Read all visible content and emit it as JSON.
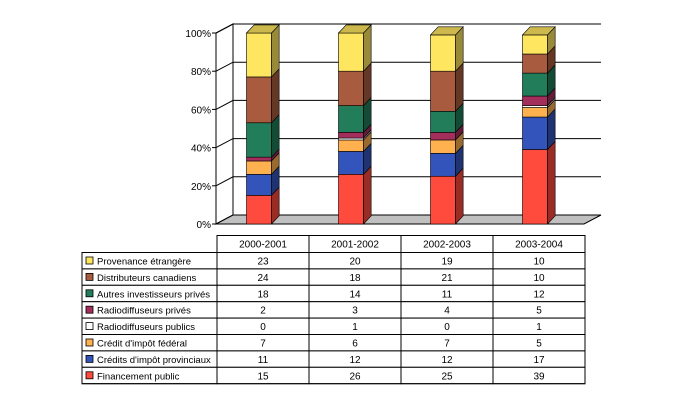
{
  "chart_data": {
    "type": "bar",
    "stacked": true,
    "percent_stacked": true,
    "three_d": true,
    "categories": [
      "2000-2001",
      "2001-2002",
      "2002-2003",
      "2003-2004"
    ],
    "y_ticks": [
      "0%",
      "20%",
      "40%",
      "60%",
      "80%",
      "100%"
    ],
    "ylim": [
      0,
      100
    ],
    "grid": true,
    "legend_placement": "data-table-left",
    "series": [
      {
        "name": "Financement public",
        "color": "#FF4B3D",
        "values": [
          15,
          26,
          25,
          39
        ]
      },
      {
        "name": "Crédits d'impôt provinciaux",
        "color": "#3355BB",
        "values": [
          11,
          12,
          12,
          17
        ]
      },
      {
        "name": "Crédit d'impôt fédéral",
        "color": "#FFB14F",
        "values": [
          7,
          6,
          7,
          5
        ]
      },
      {
        "name": "Radiodiffuseurs publics",
        "color": "#FFFFFF",
        "values": [
          0,
          1,
          0,
          1
        ]
      },
      {
        "name": "Radiodiffuseurs privés",
        "color": "#A32E5C",
        "values": [
          2,
          3,
          4,
          5
        ]
      },
      {
        "name": "Autres investisseurs privés",
        "color": "#227D5A",
        "values": [
          18,
          14,
          11,
          12
        ]
      },
      {
        "name": "Distributeurs canadiens",
        "color": "#A85B3E",
        "values": [
          24,
          18,
          21,
          10
        ]
      },
      {
        "name": "Provenance étrangère",
        "color": "#FFE660",
        "values": [
          23,
          20,
          19,
          10
        ]
      }
    ]
  }
}
